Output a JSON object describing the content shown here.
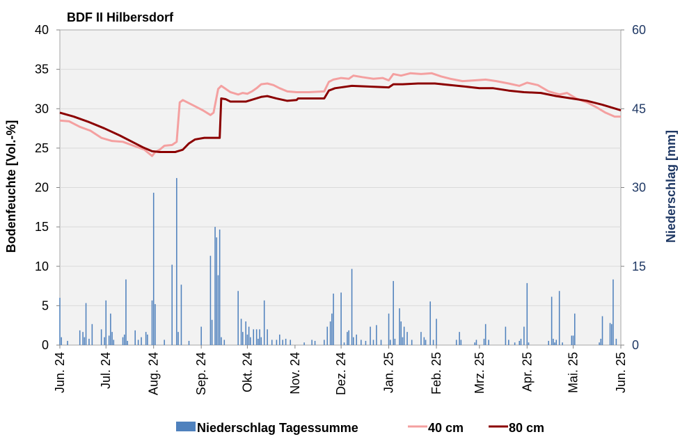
{
  "chart_data": {
    "type": "line",
    "title": "BDF II Hilbersdorf",
    "ylabel_left": "Bodenfeuchte [Vol.-%]",
    "ylabel_right": "Niederschlag [mm]",
    "ylim_left": [
      0,
      40
    ],
    "yticks_left": [
      "0",
      "5",
      "10",
      "15",
      "20",
      "25",
      "30",
      "35",
      "40"
    ],
    "ylim_right": [
      0,
      60
    ],
    "yticks_right": [
      "0",
      "15",
      "30",
      "45",
      "60"
    ],
    "xlim": [
      "2024-06-01",
      "2025-06-01"
    ],
    "xticks": [
      {
        "date": "2024-06-01",
        "label": "Jun. 24"
      },
      {
        "date": "2024-07-01",
        "label": "Jul. 24"
      },
      {
        "date": "2024-08-01",
        "label": "Aug. 24"
      },
      {
        "date": "2024-09-01",
        "label": "Sep. 24"
      },
      {
        "date": "2024-10-01",
        "label": "Okt. 24"
      },
      {
        "date": "2024-11-01",
        "label": "Nov. 24"
      },
      {
        "date": "2024-12-01",
        "label": "Dez. 24"
      },
      {
        "date": "2025-01-01",
        "label": "Jan. 25"
      },
      {
        "date": "2025-02-01",
        "label": "Feb. 25"
      },
      {
        "date": "2025-03-01",
        "label": "Mrz. 25"
      },
      {
        "date": "2025-04-01",
        "label": "Apr. 25"
      },
      {
        "date": "2025-05-01",
        "label": "Mai. 25"
      },
      {
        "date": "2025-06-01",
        "label": "Jun. 25"
      }
    ],
    "grid": true,
    "legend_position": "bottom",
    "colors": {
      "precip": "#4f81bd",
      "s40": "#f4a0a0",
      "s80": "#8b0000",
      "plot_bg": "#f2f2f2",
      "right_axis": "#1f3864"
    },
    "series": [
      {
        "name": "Niederschlag Tagessumme",
        "type": "bar",
        "axis": "right",
        "points": [
          [
            "2024-06-01",
            9.0
          ],
          [
            "2024-06-02",
            1.5
          ],
          [
            "2024-06-06",
            0.8
          ],
          [
            "2024-06-14",
            2.8
          ],
          [
            "2024-06-16",
            2.5
          ],
          [
            "2024-06-17",
            1.5
          ],
          [
            "2024-06-18",
            8.0
          ],
          [
            "2024-06-20",
            1.2
          ],
          [
            "2024-06-22",
            4.0
          ],
          [
            "2024-06-28",
            3.0
          ],
          [
            "2024-06-30",
            1.5
          ],
          [
            "2024-07-01",
            8.5
          ],
          [
            "2024-07-03",
            1.8
          ],
          [
            "2024-07-04",
            6.0
          ],
          [
            "2024-07-05",
            2.5
          ],
          [
            "2024-07-06",
            1.0
          ],
          [
            "2024-07-12",
            1.5
          ],
          [
            "2024-07-13",
            2.0
          ],
          [
            "2024-07-14",
            12.5
          ],
          [
            "2024-07-15",
            0.8
          ],
          [
            "2024-07-20",
            2.8
          ],
          [
            "2024-07-22",
            1.0
          ],
          [
            "2024-07-24",
            1.5
          ],
          [
            "2024-07-27",
            2.5
          ],
          [
            "2024-07-28",
            2.0
          ],
          [
            "2024-07-31",
            8.5
          ],
          [
            "2024-08-01",
            29.0
          ],
          [
            "2024-08-02",
            7.8
          ],
          [
            "2024-08-08",
            1.0
          ],
          [
            "2024-08-13",
            15.3
          ],
          [
            "2024-08-16",
            31.8
          ],
          [
            "2024-08-17",
            2.5
          ],
          [
            "2024-08-19",
            11.5
          ],
          [
            "2024-08-24",
            0.8
          ],
          [
            "2024-09-01",
            3.5
          ],
          [
            "2024-09-07",
            17.0
          ],
          [
            "2024-09-08",
            4.8
          ],
          [
            "2024-09-10",
            22.5
          ],
          [
            "2024-09-11",
            20.5
          ],
          [
            "2024-09-12",
            13.3
          ],
          [
            "2024-09-13",
            22.0
          ],
          [
            "2024-09-14",
            1.5
          ],
          [
            "2024-09-16",
            1.0
          ],
          [
            "2024-09-25",
            10.3
          ],
          [
            "2024-09-27",
            5.0
          ],
          [
            "2024-09-28",
            2.5
          ],
          [
            "2024-09-30",
            4.5
          ],
          [
            "2024-10-01",
            2.0
          ],
          [
            "2024-10-02",
            3.5
          ],
          [
            "2024-10-03",
            1.5
          ],
          [
            "2024-10-05",
            3.0
          ],
          [
            "2024-10-07",
            3.0
          ],
          [
            "2024-10-08",
            1.2
          ],
          [
            "2024-10-09",
            3.0
          ],
          [
            "2024-10-10",
            1.5
          ],
          [
            "2024-10-12",
            8.5
          ],
          [
            "2024-10-14",
            3.0
          ],
          [
            "2024-10-17",
            1.0
          ],
          [
            "2024-10-20",
            1.0
          ],
          [
            "2024-10-22",
            2.0
          ],
          [
            "2024-10-24",
            1.0
          ],
          [
            "2024-10-26",
            1.2
          ],
          [
            "2024-10-29",
            1.0
          ],
          [
            "2024-11-07",
            0.5
          ],
          [
            "2024-11-12",
            1.0
          ],
          [
            "2024-11-14",
            0.8
          ],
          [
            "2024-11-20",
            1.0
          ],
          [
            "2024-11-22",
            3.5
          ],
          [
            "2024-11-24",
            4.5
          ],
          [
            "2024-11-25",
            6.0
          ],
          [
            "2024-11-26",
            9.8
          ],
          [
            "2024-12-01",
            10.0
          ],
          [
            "2024-12-03",
            0.5
          ],
          [
            "2024-12-05",
            2.5
          ],
          [
            "2024-12-06",
            2.8
          ],
          [
            "2024-12-08",
            14.5
          ],
          [
            "2024-12-09",
            1.5
          ],
          [
            "2024-12-11",
            2.0
          ],
          [
            "2024-12-14",
            1.0
          ],
          [
            "2024-12-17",
            0.8
          ],
          [
            "2024-12-20",
            3.5
          ],
          [
            "2024-12-22",
            1.0
          ],
          [
            "2024-12-24",
            3.8
          ],
          [
            "2024-12-27",
            1.0
          ],
          [
            "2025-01-01",
            6.0
          ],
          [
            "2025-01-02",
            1.0
          ],
          [
            "2025-01-04",
            12.2
          ],
          [
            "2025-01-05",
            1.2
          ],
          [
            "2025-01-08",
            7.0
          ],
          [
            "2025-01-09",
            4.5
          ],
          [
            "2025-01-10",
            1.5
          ],
          [
            "2025-01-11",
            3.5
          ],
          [
            "2025-01-13",
            2.5
          ],
          [
            "2025-01-16",
            1.0
          ],
          [
            "2025-01-22",
            2.5
          ],
          [
            "2025-01-24",
            1.5
          ],
          [
            "2025-01-25",
            1.0
          ],
          [
            "2025-01-28",
            8.3
          ],
          [
            "2025-01-30",
            1.0
          ],
          [
            "2025-02-01",
            5.0
          ],
          [
            "2025-02-14",
            1.0
          ],
          [
            "2025-02-16",
            2.5
          ],
          [
            "2025-02-17",
            1.0
          ],
          [
            "2025-02-26",
            0.5
          ],
          [
            "2025-02-27",
            1.0
          ],
          [
            "2025-03-04",
            1.2
          ],
          [
            "2025-03-05",
            4.0
          ],
          [
            "2025-03-07",
            1.0
          ],
          [
            "2025-03-18",
            3.5
          ],
          [
            "2025-03-20",
            1.0
          ],
          [
            "2025-03-24",
            0.5
          ],
          [
            "2025-03-27",
            0.8
          ],
          [
            "2025-03-28",
            1.2
          ],
          [
            "2025-03-30",
            3.5
          ],
          [
            "2025-04-01",
            11.8
          ],
          [
            "2025-04-02",
            0.5
          ],
          [
            "2025-04-15",
            0.8
          ],
          [
            "2025-04-17",
            9.2
          ],
          [
            "2025-04-18",
            1.2
          ],
          [
            "2025-04-19",
            0.5
          ],
          [
            "2025-04-20",
            1.0
          ],
          [
            "2025-04-22",
            10.3
          ],
          [
            "2025-04-24",
            0.5
          ],
          [
            "2025-04-30",
            1.8
          ],
          [
            "2025-05-01",
            1.8
          ],
          [
            "2025-05-02",
            6.0
          ],
          [
            "2025-05-18",
            0.5
          ],
          [
            "2025-05-19",
            1.2
          ],
          [
            "2025-05-20",
            5.5
          ],
          [
            "2025-05-25",
            4.2
          ],
          [
            "2025-05-26",
            4.0
          ],
          [
            "2025-05-27",
            12.5
          ],
          [
            "2025-05-29",
            1.2
          ]
        ]
      },
      {
        "name": "40 cm",
        "type": "line",
        "axis": "left",
        "points": [
          [
            "2024-06-01",
            28.5
          ],
          [
            "2024-06-07",
            28.4
          ],
          [
            "2024-06-14",
            27.7
          ],
          [
            "2024-06-21",
            27.2
          ],
          [
            "2024-06-28",
            26.3
          ],
          [
            "2024-07-05",
            25.9
          ],
          [
            "2024-07-12",
            25.8
          ],
          [
            "2024-07-19",
            25.3
          ],
          [
            "2024-07-26",
            24.8
          ],
          [
            "2024-07-31",
            24.0
          ],
          [
            "2024-08-02",
            24.5
          ],
          [
            "2024-08-05",
            24.8
          ],
          [
            "2024-08-08",
            25.3
          ],
          [
            "2024-08-13",
            25.4
          ],
          [
            "2024-08-16",
            25.8
          ],
          [
            "2024-08-18",
            30.8
          ],
          [
            "2024-08-20",
            31.1
          ],
          [
            "2024-08-24",
            30.7
          ],
          [
            "2024-08-28",
            30.3
          ],
          [
            "2024-09-02",
            29.8
          ],
          [
            "2024-09-07",
            29.2
          ],
          [
            "2024-09-09",
            29.5
          ],
          [
            "2024-09-12",
            32.5
          ],
          [
            "2024-09-14",
            32.9
          ],
          [
            "2024-09-20",
            32.1
          ],
          [
            "2024-09-25",
            31.8
          ],
          [
            "2024-09-28",
            32.0
          ],
          [
            "2024-10-01",
            31.9
          ],
          [
            "2024-10-04",
            32.2
          ],
          [
            "2024-10-07",
            32.6
          ],
          [
            "2024-10-10",
            33.1
          ],
          [
            "2024-10-14",
            33.2
          ],
          [
            "2024-10-18",
            33.0
          ],
          [
            "2024-10-22",
            32.6
          ],
          [
            "2024-10-27",
            32.2
          ],
          [
            "2024-11-02",
            32.1
          ],
          [
            "2024-11-10",
            32.1
          ],
          [
            "2024-11-20",
            32.2
          ],
          [
            "2024-11-23",
            33.4
          ],
          [
            "2024-11-26",
            33.7
          ],
          [
            "2024-12-01",
            33.9
          ],
          [
            "2024-12-06",
            33.8
          ],
          [
            "2024-12-09",
            34.2
          ],
          [
            "2024-12-15",
            34.0
          ],
          [
            "2024-12-22",
            33.8
          ],
          [
            "2024-12-28",
            33.9
          ],
          [
            "2025-01-01",
            33.6
          ],
          [
            "2025-01-04",
            34.4
          ],
          [
            "2025-01-09",
            34.2
          ],
          [
            "2025-01-15",
            34.5
          ],
          [
            "2025-01-22",
            34.4
          ],
          [
            "2025-01-29",
            34.5
          ],
          [
            "2025-02-04",
            34.1
          ],
          [
            "2025-02-10",
            33.8
          ],
          [
            "2025-02-18",
            33.5
          ],
          [
            "2025-02-26",
            33.6
          ],
          [
            "2025-03-05",
            33.7
          ],
          [
            "2025-03-12",
            33.5
          ],
          [
            "2025-03-20",
            33.2
          ],
          [
            "2025-03-27",
            32.9
          ],
          [
            "2025-04-01",
            33.3
          ],
          [
            "2025-04-08",
            33.0
          ],
          [
            "2025-04-15",
            32.2
          ],
          [
            "2025-04-22",
            31.8
          ],
          [
            "2025-04-27",
            32.0
          ],
          [
            "2025-05-03",
            31.3
          ],
          [
            "2025-05-10",
            30.8
          ],
          [
            "2025-05-16",
            30.2
          ],
          [
            "2025-05-22",
            29.5
          ],
          [
            "2025-05-28",
            29.0
          ],
          [
            "2025-06-01",
            29.0
          ]
        ]
      },
      {
        "name": "80 cm",
        "type": "line",
        "axis": "left",
        "points": [
          [
            "2024-06-01",
            29.5
          ],
          [
            "2024-06-10",
            29.0
          ],
          [
            "2024-06-20",
            28.3
          ],
          [
            "2024-06-30",
            27.5
          ],
          [
            "2024-07-10",
            26.6
          ],
          [
            "2024-07-20",
            25.6
          ],
          [
            "2024-07-25",
            25.1
          ],
          [
            "2024-07-31",
            24.6
          ],
          [
            "2024-08-05",
            24.5
          ],
          [
            "2024-08-15",
            24.5
          ],
          [
            "2024-08-20",
            24.8
          ],
          [
            "2024-08-24",
            25.6
          ],
          [
            "2024-08-28",
            26.1
          ],
          [
            "2024-09-03",
            26.3
          ],
          [
            "2024-09-13",
            26.3
          ],
          [
            "2024-09-14",
            31.3
          ],
          [
            "2024-09-17",
            31.2
          ],
          [
            "2024-09-20",
            30.9
          ],
          [
            "2024-09-30",
            30.9
          ],
          [
            "2024-10-05",
            31.2
          ],
          [
            "2024-10-10",
            31.5
          ],
          [
            "2024-10-14",
            31.6
          ],
          [
            "2024-10-20",
            31.3
          ],
          [
            "2024-10-27",
            31.0
          ],
          [
            "2024-11-02",
            31.1
          ],
          [
            "2024-11-03",
            31.3
          ],
          [
            "2024-11-20",
            31.3
          ],
          [
            "2024-11-23",
            32.3
          ],
          [
            "2024-11-27",
            32.6
          ],
          [
            "2024-12-08",
            32.9
          ],
          [
            "2024-12-20",
            32.8
          ],
          [
            "2025-01-01",
            32.7
          ],
          [
            "2025-01-04",
            33.1
          ],
          [
            "2025-01-10",
            33.1
          ],
          [
            "2025-01-20",
            33.2
          ],
          [
            "2025-01-31",
            33.2
          ],
          [
            "2025-02-10",
            33.0
          ],
          [
            "2025-02-20",
            32.8
          ],
          [
            "2025-03-01",
            32.6
          ],
          [
            "2025-03-10",
            32.6
          ],
          [
            "2025-03-20",
            32.3
          ],
          [
            "2025-03-30",
            32.1
          ],
          [
            "2025-04-10",
            32.0
          ],
          [
            "2025-04-20",
            31.6
          ],
          [
            "2025-04-30",
            31.3
          ],
          [
            "2025-05-10",
            31.0
          ],
          [
            "2025-05-20",
            30.5
          ],
          [
            "2025-06-01",
            29.8
          ]
        ]
      }
    ]
  }
}
